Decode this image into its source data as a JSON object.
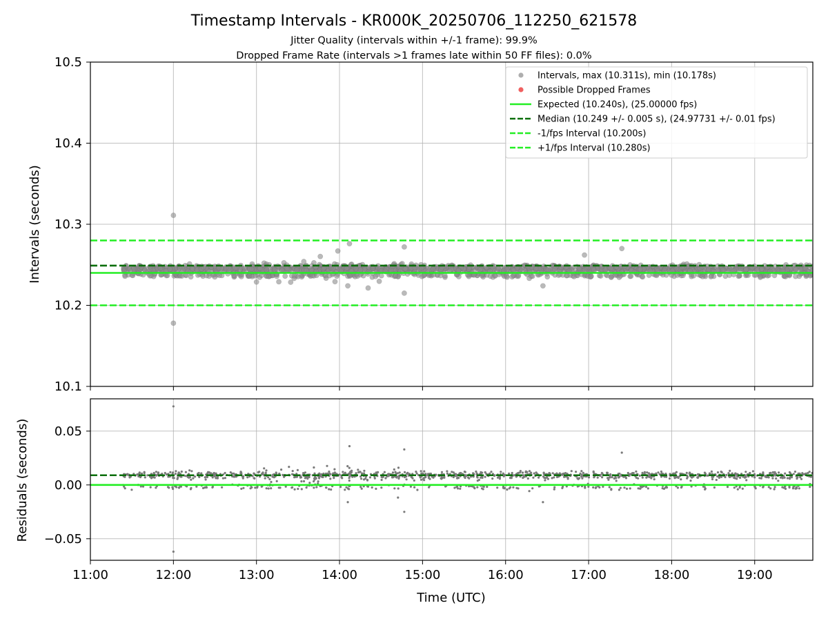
{
  "chart_data": {
    "title": "Timestamp Intervals - KR000K_20250706_112250_621578",
    "subtitle_1": "Jitter Quality (intervals within +/-1 frame): 99.9%",
    "subtitle_2": "Dropped Frame Rate (intervals >1 frames late within 50 FF files): 0.0%",
    "xlabel": "Time (UTC)",
    "x_ticks": [
      "11:00",
      "12:00",
      "13:00",
      "14:00",
      "15:00",
      "16:00",
      "17:00",
      "18:00",
      "19:00"
    ],
    "x_range_hours": [
      11.0,
      19.7
    ],
    "data_start_hour": 11.38,
    "data_end_hour": 19.7,
    "panels": [
      {
        "id": "intervals",
        "type": "scatter",
        "ylabel": "Intervals (seconds)",
        "ylim": [
          10.1,
          10.5
        ],
        "y_ticks": [
          "10.1",
          "10.2",
          "10.3",
          "10.4",
          "10.5"
        ],
        "grid": true,
        "legend_position": "upper-right",
        "lines": [
          {
            "name": "Expected (10.240s), (25.00000 fps)",
            "value": 10.24,
            "style": "solid",
            "color": "#22ee22"
          },
          {
            "name": "Median (10.249 +/- 0.005 s), (24.97731 +/- 0.01 fps)",
            "value": 10.249,
            "style": "dashed",
            "color": "#0a6e0a"
          },
          {
            "name": "-1/fps Interval (10.200s)",
            "value": 10.2,
            "style": "dashed",
            "color": "#22ee22"
          },
          {
            "name": "+1/fps Interval (10.280s)",
            "value": 10.28,
            "style": "dashed",
            "color": "#22ee22"
          }
        ],
        "scatter_series": [
          {
            "name": "Intervals, max (10.311s), min (10.178s)",
            "color": "#8c8c8c",
            "center": 10.245,
            "spread": 0.005,
            "max": 10.311,
            "min": 10.178
          },
          {
            "name": "Possible Dropped Frames",
            "color": "#f06060",
            "points": []
          }
        ],
        "outliers": [
          {
            "x": 12.0,
            "y": 10.311
          },
          {
            "x": 12.0,
            "y": 10.178
          },
          {
            "x": 14.12,
            "y": 10.276
          },
          {
            "x": 13.98,
            "y": 10.267
          },
          {
            "x": 14.78,
            "y": 10.272
          },
          {
            "x": 14.78,
            "y": 10.215
          },
          {
            "x": 14.1,
            "y": 10.224
          },
          {
            "x": 17.4,
            "y": 10.27
          },
          {
            "x": 16.45,
            "y": 10.224
          },
          {
            "x": 16.95,
            "y": 10.262
          }
        ]
      },
      {
        "id": "residuals",
        "type": "scatter",
        "ylabel": "Residuals (seconds)",
        "ylim": [
          -0.07,
          0.08
        ],
        "y_ticks": [
          "−0.05",
          "0.00",
          "0.05"
        ],
        "y_tick_values": [
          -0.05,
          0.0,
          0.05
        ],
        "grid": true,
        "lines": [
          {
            "value": 0.0,
            "style": "solid",
            "color": "#22ee22"
          },
          {
            "value": 0.009,
            "style": "dashed",
            "color": "#0a6e0a"
          }
        ],
        "scatter_series": [
          {
            "color": "#7a7a7a",
            "center": 0.009,
            "spread": 0.003,
            "max": 0.073,
            "min": -0.062
          }
        ],
        "outliers": [
          {
            "x": 12.0,
            "y": 0.073
          },
          {
            "x": 12.0,
            "y": -0.062
          },
          {
            "x": 14.12,
            "y": 0.036
          },
          {
            "x": 14.78,
            "y": 0.033
          },
          {
            "x": 14.78,
            "y": -0.025
          },
          {
            "x": 14.1,
            "y": -0.016
          },
          {
            "x": 17.4,
            "y": 0.03
          },
          {
            "x": 16.45,
            "y": -0.016
          }
        ]
      }
    ],
    "legend": [
      {
        "label": "Intervals, max (10.311s), min (10.178s)",
        "kind": "marker",
        "color": "#8c8c8c"
      },
      {
        "label": "Possible Dropped Frames",
        "kind": "marker",
        "color": "#f06060"
      },
      {
        "label": "Expected (10.240s), (25.00000 fps)",
        "kind": "solid",
        "color": "#22ee22"
      },
      {
        "label": "Median (10.249 +/- 0.005 s), (24.97731 +/- 0.01 fps)",
        "kind": "dashed",
        "color": "#0a6e0a"
      },
      {
        "label": "-1/fps Interval (10.200s)",
        "kind": "dashed",
        "color": "#22ee22"
      },
      {
        "label": "+1/fps Interval (10.280s)",
        "kind": "dashed",
        "color": "#22ee22"
      }
    ]
  }
}
